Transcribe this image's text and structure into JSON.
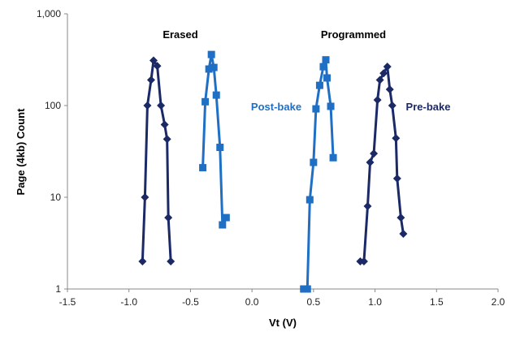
{
  "chart_data": {
    "type": "line",
    "xlabel": "Vt (V)",
    "ylabel": "Page (4kb) Count",
    "xlim": [
      -1.5,
      2.0
    ],
    "ylim": [
      1,
      1000
    ],
    "yscale": "log",
    "xticks": [
      "-1.5",
      "-1.0",
      "-0.5",
      "0.0",
      "0.5",
      "1.0",
      "1.5",
      "2.0"
    ],
    "yticks": [
      "1",
      "10",
      "100",
      "1,000"
    ],
    "grid": false,
    "annotations": [
      {
        "text": "Erased",
        "color": "#000000"
      },
      {
        "text": "Programmed",
        "color": "#000000"
      },
      {
        "text": "Post-bake",
        "color": "#1f6fc5"
      },
      {
        "text": "Pre-bake",
        "color": "#1b2a66"
      }
    ],
    "series": [
      {
        "group": "erased-pre-bake",
        "marker": "diamond",
        "color": "#1b2a66",
        "x": [
          -0.89,
          -0.87,
          -0.85,
          -0.82,
          -0.8,
          -0.77,
          -0.74,
          -0.71,
          -0.69,
          -0.68,
          -0.66
        ],
        "y": [
          2,
          10,
          100,
          190,
          310,
          270,
          100,
          62,
          43,
          6,
          2
        ]
      },
      {
        "group": "erased-post-bake",
        "marker": "square",
        "color": "#1f6fc5",
        "x": [
          -0.4,
          -0.38,
          -0.35,
          -0.33,
          -0.31,
          -0.29,
          -0.26,
          -0.24,
          -0.21
        ],
        "y": [
          21,
          110,
          250,
          360,
          260,
          130,
          35,
          5,
          6
        ]
      },
      {
        "group": "programmed-post-bake",
        "marker": "square",
        "color": "#1f6fc5",
        "x": [
          0.42,
          0.45,
          0.47,
          0.5,
          0.52,
          0.55,
          0.58,
          0.6,
          0.61,
          0.64,
          0.66
        ],
        "y": [
          1,
          1,
          9.4,
          24,
          92,
          166,
          265,
          315,
          200,
          98,
          27
        ]
      },
      {
        "group": "programmed-pre-bake",
        "marker": "diamond",
        "color": "#1b2a66",
        "x": [
          0.88,
          0.91,
          0.94,
          0.96,
          0.99,
          1.02,
          1.04,
          1.07,
          1.1,
          1.12,
          1.14,
          1.17,
          1.18,
          1.21,
          1.23
        ],
        "y": [
          2,
          2,
          8,
          24,
          30,
          115,
          190,
          225,
          265,
          150,
          100,
          44,
          16,
          6,
          4
        ]
      }
    ]
  }
}
